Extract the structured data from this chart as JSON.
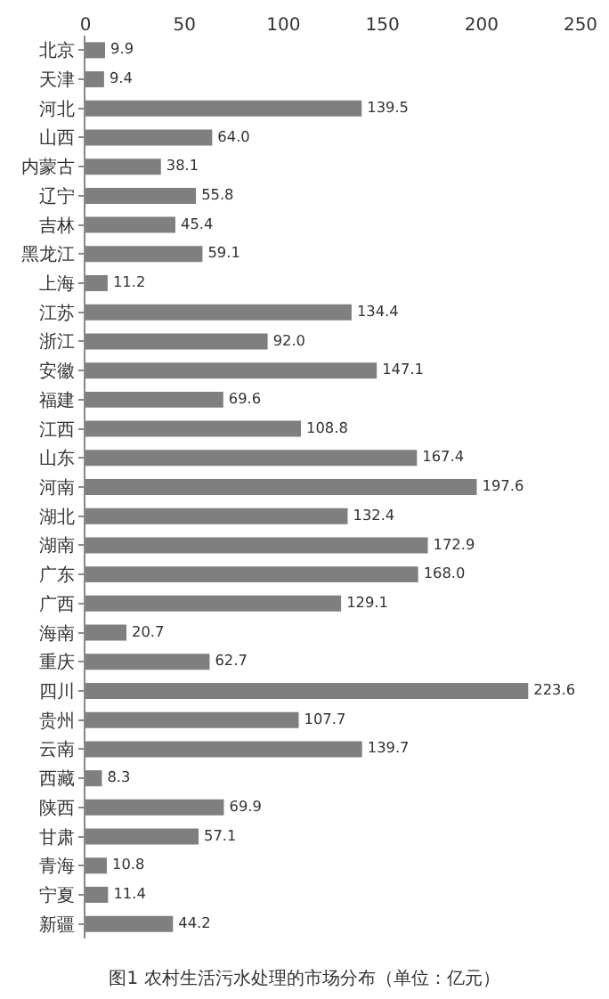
{
  "chart_data": {
    "type": "bar",
    "orientation": "horizontal",
    "title": "图1 农村生活污水处理的市场分布（单位：亿元）",
    "categories": [
      "北京",
      "天津",
      "河北",
      "山西",
      "内蒙古",
      "辽宁",
      "吉林",
      "黑龙江",
      "上海",
      "江苏",
      "浙江",
      "安徽",
      "福建",
      "江西",
      "山东",
      "河南",
      "湖北",
      "湖南",
      "广东",
      "广西",
      "海南",
      "重庆",
      "四川",
      "贵州",
      "云南",
      "西藏",
      "陕西",
      "甘肃",
      "青海",
      "宁夏",
      "新疆"
    ],
    "values": [
      9.9,
      9.4,
      139.5,
      64.0,
      38.1,
      55.8,
      45.4,
      59.1,
      11.2,
      134.4,
      92.0,
      147.1,
      69.6,
      108.8,
      167.4,
      197.6,
      132.4,
      172.9,
      168.0,
      129.1,
      20.7,
      62.7,
      223.6,
      107.7,
      139.7,
      8.3,
      69.9,
      57.1,
      10.8,
      11.4,
      44.2
    ],
    "value_labels": [
      "9.9",
      "9.4",
      "139.5",
      "64.0",
      "38.1",
      "55.8",
      "45.4",
      "59.1",
      "11.2",
      "134.4",
      "92.0",
      "147.1",
      "69.6",
      "108.8",
      "167.4",
      "197.6",
      "132.4",
      "172.9",
      "168.0",
      "129.1",
      "20.7",
      "62.7",
      "223.6",
      "107.7",
      "139.7",
      "8.3",
      "69.9",
      "57.1",
      "10.8",
      "11.4",
      "44.2"
    ],
    "color": "#7f7f7f",
    "xlim": [
      0,
      250
    ],
    "xticks": [
      0,
      50,
      100,
      150,
      200,
      250
    ]
  }
}
